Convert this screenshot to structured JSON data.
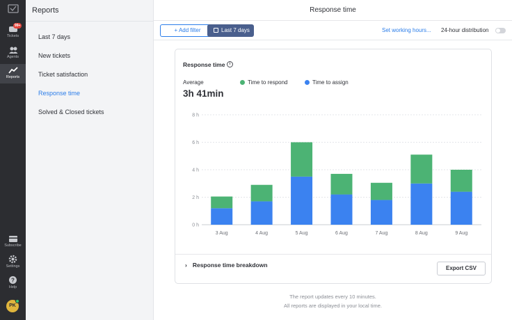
{
  "rail": {
    "items": [
      {
        "label": "Tickets",
        "badge": "99+"
      },
      {
        "label": "Agents"
      },
      {
        "label": "Reports"
      },
      {
        "label": "Subscribe"
      },
      {
        "label": "Settings"
      },
      {
        "label": "Help"
      }
    ],
    "avatar_initials": "PK"
  },
  "subnav": {
    "title": "Reports",
    "items": [
      {
        "label": "Last 7 days"
      },
      {
        "label": "New tickets"
      },
      {
        "label": "Ticket satisfaction"
      },
      {
        "label": "Response time",
        "active": true
      },
      {
        "label": "Solved & Closed tickets"
      }
    ]
  },
  "header": {
    "title": "Response time"
  },
  "toolbar": {
    "add_filter": "+ Add filter",
    "date_range": "Last 7 days",
    "working_hours": "Set working hours...",
    "distribution": "24-hour distribution",
    "distribution_enabled": false
  },
  "card": {
    "title": "Response time",
    "average_label": "Average",
    "average_value": "3h 41min",
    "breakdown": "Response time breakdown",
    "export": "Export CSV"
  },
  "chart_data": {
    "type": "bar",
    "stacked": true,
    "categories": [
      "3 Aug",
      "4 Aug",
      "5 Aug",
      "6 Aug",
      "7 Aug",
      "8 Aug",
      "9 Aug"
    ],
    "series": [
      {
        "name": "Time to assign",
        "color": "#3b82f0",
        "values": [
          1.2,
          1.7,
          3.5,
          2.2,
          1.8,
          3.0,
          2.4
        ]
      },
      {
        "name": "Time to respond",
        "color": "#4cb374",
        "values": [
          0.85,
          1.2,
          2.5,
          1.5,
          1.25,
          2.1,
          1.6
        ]
      }
    ],
    "legend_order": [
      "Time to respond",
      "Time to assign"
    ],
    "yticks": [
      "0 h",
      "2 h",
      "4 h",
      "6 h",
      "8 h"
    ],
    "ylim": [
      0,
      8
    ],
    "grid": true
  },
  "footer": {
    "line1": "The report updates every 10 minutes.",
    "line2": "All reports are displayed in your local time."
  }
}
